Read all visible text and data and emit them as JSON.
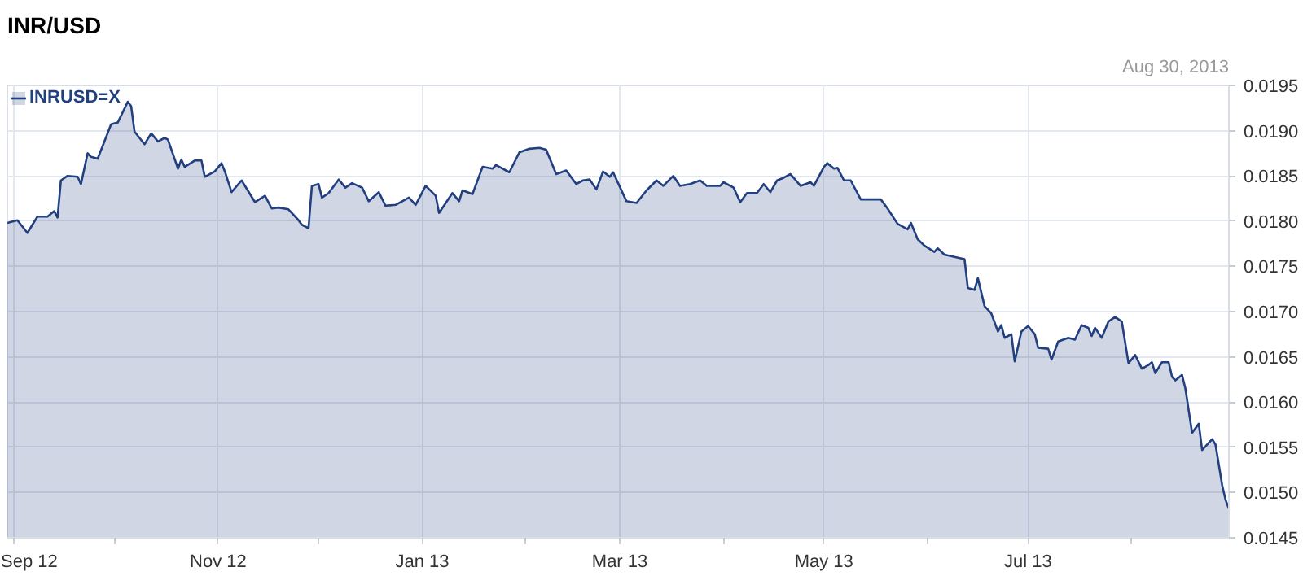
{
  "chart_data": {
    "type": "area",
    "title": "INR/USD",
    "annotations": [
      "Aug 30, 2013"
    ],
    "legend": "top left",
    "grid": true,
    "xlim": [
      "2012-08-30",
      "2013-08-30"
    ],
    "xticks": [
      {
        "value": "2012-09-01",
        "label": "Sep 12"
      },
      {
        "value": "2012-10-01",
        "label": null
      },
      {
        "value": "2012-11-01",
        "label": "Nov 12"
      },
      {
        "value": "2012-12-01",
        "label": null
      },
      {
        "value": "2013-01-01",
        "label": "Jan 13"
      },
      {
        "value": "2013-02-01",
        "label": null
      },
      {
        "value": "2013-03-01",
        "label": "Mar 13"
      },
      {
        "value": "2013-04-01",
        "label": null
      },
      {
        "value": "2013-05-01",
        "label": "May 13"
      },
      {
        "value": "2013-06-01",
        "label": null
      },
      {
        "value": "2013-07-01",
        "label": "Jul 13"
      },
      {
        "value": "2013-08-01",
        "label": null
      }
    ],
    "ylim": [
      0.0145,
      0.0195
    ],
    "yticks": [
      {
        "value": 0.0145,
        "label": "0.0145"
      },
      {
        "value": 0.015,
        "label": "0.0150"
      },
      {
        "value": 0.0155,
        "label": "0.0155"
      },
      {
        "value": 0.016,
        "label": "0.0160"
      },
      {
        "value": 0.0165,
        "label": "0.0165"
      },
      {
        "value": 0.017,
        "label": "0.0170"
      },
      {
        "value": 0.0175,
        "label": "0.0175"
      },
      {
        "value": 0.018,
        "label": "0.0180"
      },
      {
        "value": 0.0185,
        "label": "0.0185"
      },
      {
        "value": 0.019,
        "label": "0.0190"
      },
      {
        "value": 0.0195,
        "label": "0.0195"
      }
    ],
    "series": [
      {
        "name": "INRUSD=X",
        "color": "#223f80",
        "x": [
          "2012-08-30",
          "2012-09-02",
          "2012-09-05",
          "2012-09-08",
          "2012-09-11",
          "2012-09-13",
          "2012-09-14",
          "2012-09-15",
          "2012-09-17",
          "2012-09-20",
          "2012-09-21",
          "2012-09-23",
          "2012-09-24",
          "2012-09-26",
          "2012-09-28",
          "2012-09-30",
          "2012-10-02",
          "2012-10-05",
          "2012-10-06",
          "2012-10-07",
          "2012-10-10",
          "2012-10-12",
          "2012-10-14",
          "2012-10-16",
          "2012-10-17",
          "2012-10-20",
          "2012-10-21",
          "2012-10-22",
          "2012-10-25",
          "2012-10-27",
          "2012-10-28",
          "2012-10-31",
          "2012-11-02",
          "2012-11-03",
          "2012-11-05",
          "2012-11-08",
          "2012-11-12",
          "2012-11-15",
          "2012-11-17",
          "2012-11-19",
          "2012-11-22",
          "2012-11-25",
          "2012-11-26",
          "2012-11-28",
          "2012-11-29",
          "2012-12-01",
          "2012-12-02",
          "2012-12-04",
          "2012-12-07",
          "2012-12-09",
          "2012-12-11",
          "2012-12-14",
          "2012-12-16",
          "2012-12-19",
          "2012-12-21",
          "2012-12-24",
          "2012-12-28",
          "2012-12-30",
          "2013-01-02",
          "2013-01-05",
          "2013-01-06",
          "2013-01-10",
          "2013-01-12",
          "2013-01-13",
          "2013-01-16",
          "2013-01-19",
          "2013-01-22",
          "2013-01-23",
          "2013-01-27",
          "2013-01-30",
          "2013-02-02",
          "2013-02-05",
          "2013-02-07",
          "2013-02-10",
          "2013-02-13",
          "2013-02-16",
          "2013-02-18",
          "2013-02-20",
          "2013-02-22",
          "2013-02-24",
          "2013-02-26",
          "2013-02-27",
          "2013-03-03",
          "2013-03-06",
          "2013-03-09",
          "2013-03-12",
          "2013-03-14",
          "2013-03-17",
          "2013-03-19",
          "2013-03-22",
          "2013-03-25",
          "2013-03-27",
          "2013-03-31",
          "2013-04-01",
          "2013-04-04",
          "2013-04-06",
          "2013-04-08",
          "2013-04-11",
          "2013-04-13",
          "2013-04-15",
          "2013-04-17",
          "2013-04-19",
          "2013-04-21",
          "2013-04-24",
          "2013-04-27",
          "2013-04-28",
          "2013-05-01",
          "2013-05-02",
          "2013-05-04",
          "2013-05-05",
          "2013-05-07",
          "2013-05-09",
          "2013-05-12",
          "2013-05-18",
          "2013-05-20",
          "2013-05-23",
          "2013-05-26",
          "2013-05-27",
          "2013-05-29",
          "2013-05-31",
          "2013-06-03",
          "2013-06-04",
          "2013-06-06",
          "2013-06-12",
          "2013-06-13",
          "2013-06-15",
          "2013-06-16",
          "2013-06-18",
          "2013-06-20",
          "2013-06-22",
          "2013-06-23",
          "2013-06-24",
          "2013-06-26",
          "2013-06-27",
          "2013-06-29",
          "2013-07-01",
          "2013-07-03",
          "2013-07-04",
          "2013-07-07",
          "2013-07-08",
          "2013-07-10",
          "2013-07-13",
          "2013-07-15",
          "2013-07-17",
          "2013-07-19",
          "2013-07-20",
          "2013-07-21",
          "2013-07-23",
          "2013-07-25",
          "2013-07-27",
          "2013-07-29",
          "2013-07-31",
          "2013-08-02",
          "2013-08-04",
          "2013-08-06",
          "2013-08-07",
          "2013-08-08",
          "2013-08-10",
          "2013-08-12",
          "2013-08-13",
          "2013-08-14",
          "2013-08-16",
          "2013-08-17",
          "2013-08-19",
          "2013-08-21",
          "2013-08-22",
          "2013-08-25",
          "2013-08-26",
          "2013-08-28",
          "2013-08-29",
          "2013-08-30"
        ],
        "values": [
          0.01798,
          0.01801,
          0.01787,
          0.01805,
          0.01805,
          0.01811,
          0.01804,
          0.01845,
          0.0185,
          0.01849,
          0.01841,
          0.01875,
          0.01871,
          0.01869,
          0.01888,
          0.01907,
          0.01909,
          0.01932,
          0.01927,
          0.01899,
          0.01885,
          0.01897,
          0.01888,
          0.01892,
          0.0189,
          0.01858,
          0.01868,
          0.0186,
          0.01867,
          0.01867,
          0.01849,
          0.01855,
          0.01864,
          0.01855,
          0.01832,
          0.01845,
          0.01821,
          0.01828,
          0.01814,
          0.01815,
          0.01813,
          0.01801,
          0.01796,
          0.01792,
          0.01839,
          0.01841,
          0.01826,
          0.01831,
          0.01846,
          0.01837,
          0.01842,
          0.01837,
          0.01822,
          0.01832,
          0.01817,
          0.01818,
          0.01826,
          0.01818,
          0.01839,
          0.01828,
          0.01809,
          0.01831,
          0.01822,
          0.01834,
          0.0183,
          0.0186,
          0.01858,
          0.01862,
          0.01854,
          0.01876,
          0.0188,
          0.01881,
          0.01879,
          0.01852,
          0.01856,
          0.01841,
          0.01845,
          0.01846,
          0.01835,
          0.01855,
          0.01849,
          0.01854,
          0.01822,
          0.0182,
          0.01834,
          0.01845,
          0.01839,
          0.0185,
          0.01839,
          0.01841,
          0.01845,
          0.01839,
          0.01839,
          0.01843,
          0.01837,
          0.01821,
          0.01831,
          0.01831,
          0.01841,
          0.01832,
          0.01845,
          0.01848,
          0.01852,
          0.01839,
          0.01843,
          0.01839,
          0.0186,
          0.01864,
          0.01858,
          0.01859,
          0.01845,
          0.01845,
          0.01824,
          0.01824,
          0.01814,
          0.01797,
          0.01791,
          0.01798,
          0.0178,
          0.01773,
          0.01766,
          0.0177,
          0.01763,
          0.01758,
          0.01726,
          0.01724,
          0.01737,
          0.01706,
          0.01698,
          0.01678,
          0.01685,
          0.01671,
          0.01675,
          0.01645,
          0.01678,
          0.01684,
          0.01675,
          0.0166,
          0.01659,
          0.01647,
          0.01667,
          0.01671,
          0.01669,
          0.01685,
          0.01682,
          0.01673,
          0.01682,
          0.01671,
          0.01689,
          0.01694,
          0.01689,
          0.01643,
          0.01652,
          0.01637,
          0.01641,
          0.01644,
          0.01632,
          0.01644,
          0.01644,
          0.01628,
          0.01624,
          0.0163,
          0.01615,
          0.01566,
          0.01576,
          0.01547,
          0.01559,
          0.01553,
          0.01508,
          0.01492,
          0.01482
        ]
      }
    ]
  }
}
